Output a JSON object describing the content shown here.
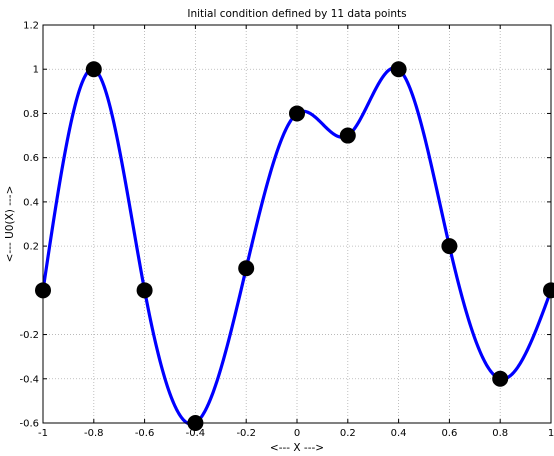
{
  "chart_data": {
    "type": "line",
    "title": "Initial condition defined by 11 data points",
    "xlabel": "<--- X --->",
    "ylabel": "<--- U0(X) --->",
    "xlim": [
      -1,
      1
    ],
    "ylim": [
      -0.6,
      1.2
    ],
    "x_ticks": [
      -1,
      -0.8,
      -0.6,
      -0.4,
      -0.2,
      0,
      0.2,
      0.4,
      0.6,
      0.8,
      1
    ],
    "x_tick_labels": [
      "-1",
      "-0.8",
      "-0.6",
      "-0.4",
      "-0.2",
      "0",
      "0.2",
      "0.4",
      "0.6",
      "0.8",
      "1"
    ],
    "y_ticks": [
      -0.6,
      -0.4,
      -0.2,
      0.2,
      0.4,
      0.6,
      0.8,
      1,
      1.2
    ],
    "y_tick_labels": [
      "-0.6",
      "-0.4",
      "-0.2",
      "0.2",
      "0.4",
      "0.6",
      "0.8",
      "1",
      "1.2"
    ],
    "grid": true,
    "series": [
      {
        "kind": "line",
        "color": "#0000ff",
        "x": [
          -1,
          -0.8,
          -0.6,
          -0.4,
          -0.2,
          0,
          0.2,
          0.4,
          0.6,
          0.8,
          1
        ],
        "y": [
          0,
          1,
          0,
          -0.6,
          0.1,
          0.8,
          0.7,
          1,
          0.2,
          -0.4,
          0
        ]
      },
      {
        "kind": "markers",
        "color": "#000000",
        "x": [
          -1,
          -0.8,
          -0.6,
          -0.4,
          -0.2,
          0,
          0.2,
          0.4,
          0.6,
          0.8,
          1
        ],
        "y": [
          0,
          1,
          0,
          -0.6,
          0.1,
          0.8,
          0.7,
          1,
          0.2,
          -0.4,
          0
        ]
      }
    ]
  }
}
